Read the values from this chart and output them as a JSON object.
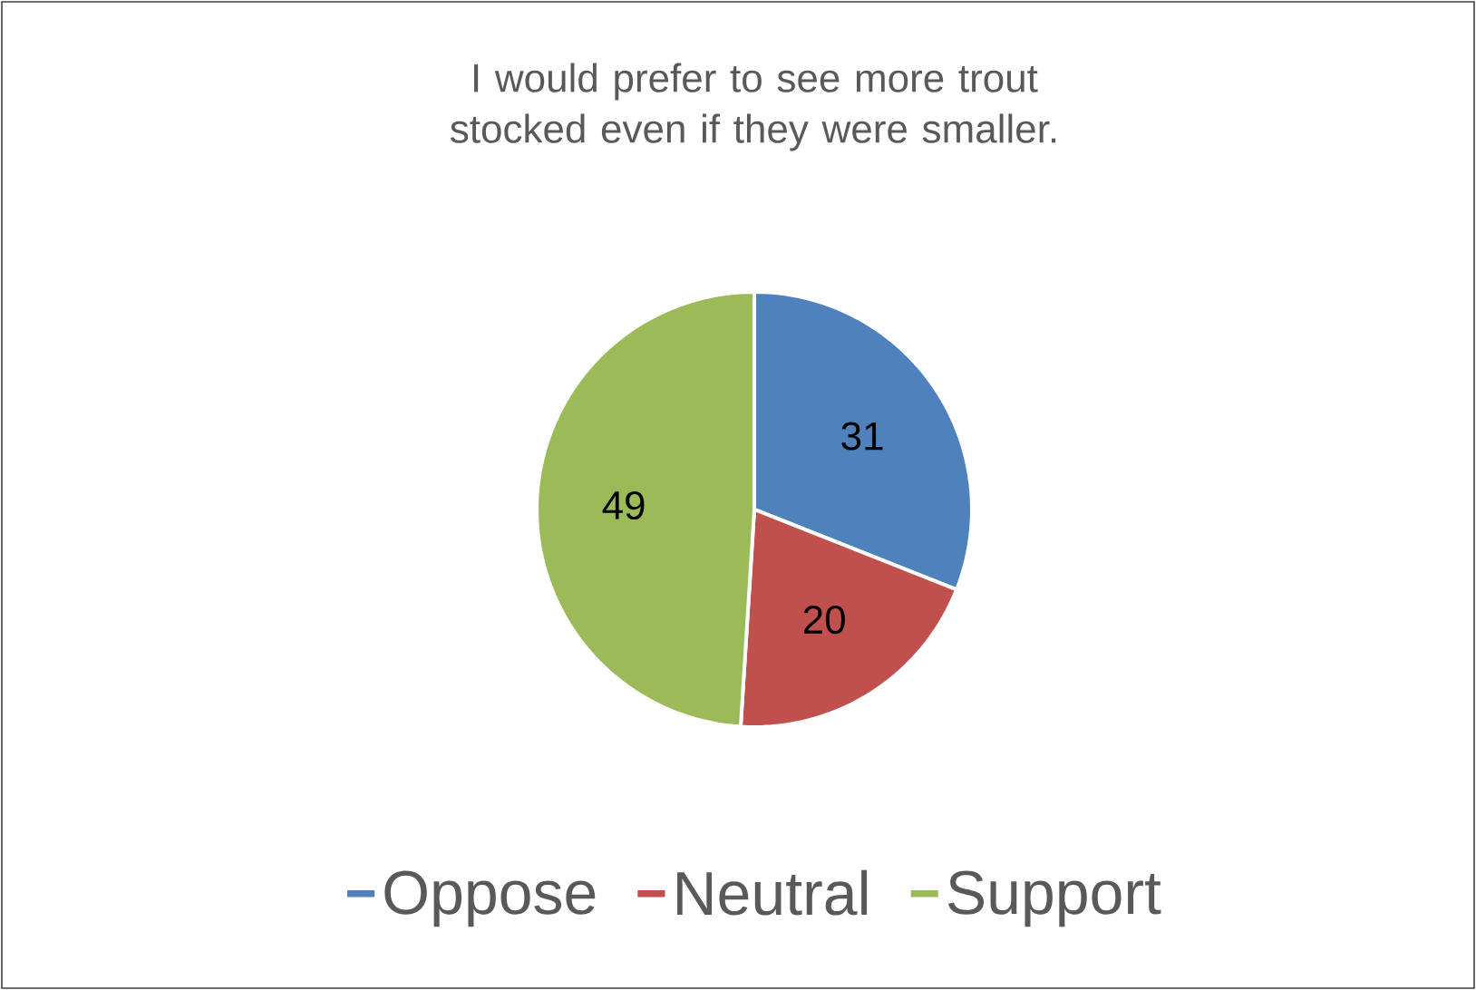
{
  "chart_data": {
    "type": "pie",
    "title": "I would prefer to see more trout stocked even if they were smaller.",
    "categories": [
      "Oppose",
      "Neutral",
      "Support"
    ],
    "values": [
      31,
      20,
      49
    ],
    "colors": [
      "#4f81bd",
      "#c0504d",
      "#9bbb59"
    ],
    "data_labels": true,
    "legend": "bottom"
  }
}
